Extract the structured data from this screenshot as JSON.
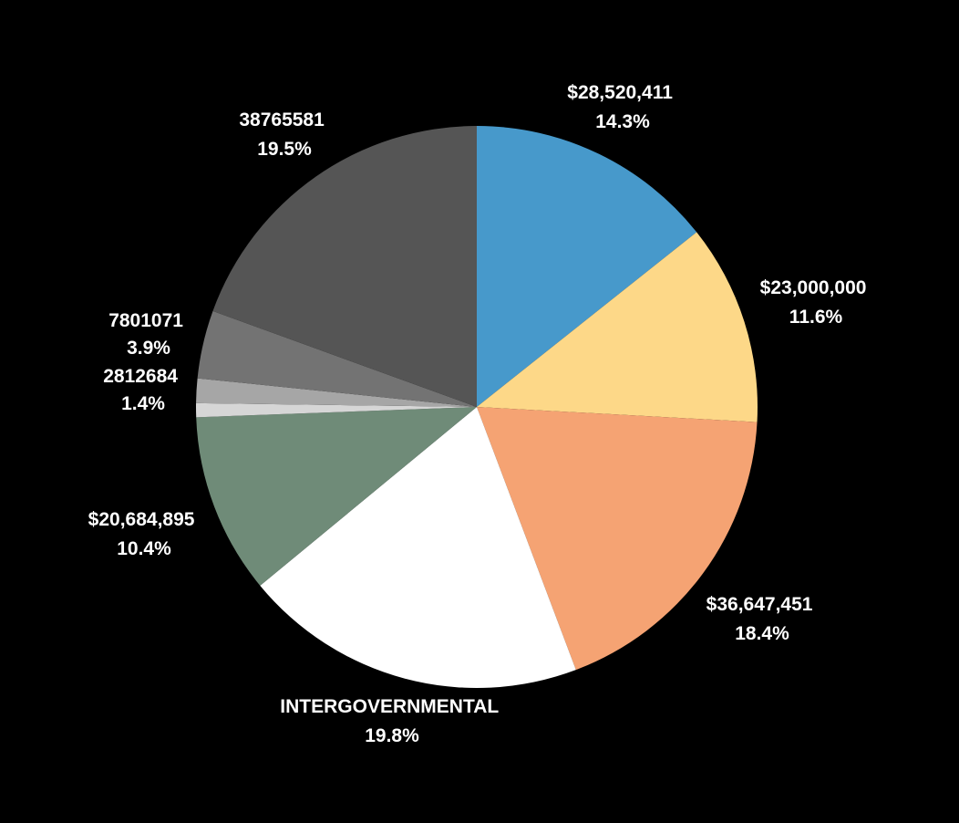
{
  "chart_data": {
    "type": "pie",
    "background": "#000000",
    "start_angle_deg": 0,
    "direction": "clockwise",
    "slices": [
      {
        "value": 28520411,
        "value_label": "$28,520,411",
        "percent_label": "14.3%",
        "color": "#4799cb"
      },
      {
        "value": 23000000,
        "value_label": "$23,000,000",
        "percent_label": "11.6%",
        "color": "#fdd888"
      },
      {
        "value": 36647451,
        "value_label": "$36,647,451",
        "percent_label": "18.4%",
        "color": "#f5a373"
      },
      {
        "value": 39400000,
        "value_label": "INTERGOVERNMENTAL",
        "percent_label": "19.8%",
        "color": "#ffffff"
      },
      {
        "value": 20684895,
        "value_label": "$20,684,895",
        "percent_label": "10.4%",
        "color": "#6f8b78"
      },
      {
        "value": 1600000,
        "value_label": "",
        "percent_label": "",
        "color": "#d6d6d6"
      },
      {
        "value": 2812684,
        "value_label": "2812684",
        "percent_label": "1.4%",
        "color": "#a6a6a6"
      },
      {
        "value": 7801071,
        "value_label": "7801071",
        "percent_label": "3.9%",
        "color": "#737373"
      },
      {
        "value": 38765581,
        "value_label": "38765581",
        "percent_label": "19.5%",
        "color": "#555555"
      }
    ]
  }
}
